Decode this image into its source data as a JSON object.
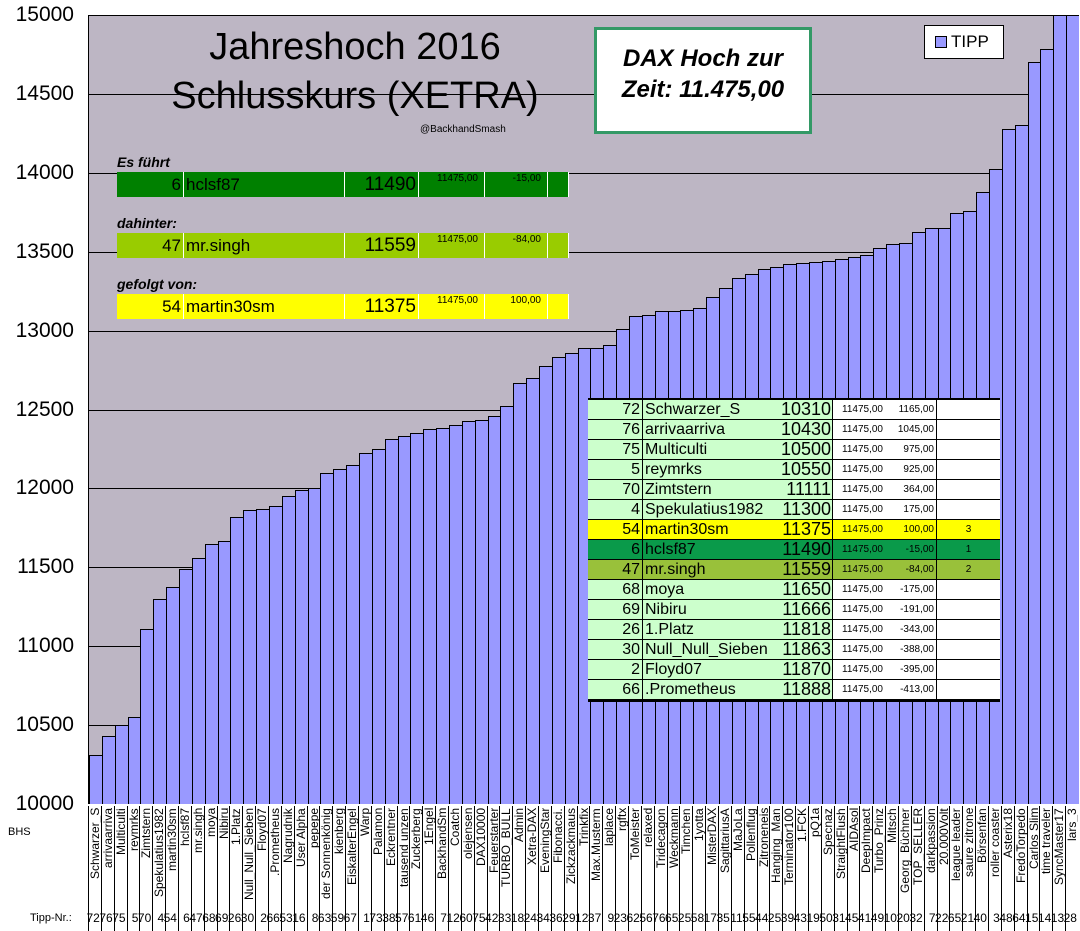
{
  "title": {
    "line1": "Jahreshoch 2016",
    "line2": "Schlusskurs (XETRA)",
    "handle": "@BackhandSmash"
  },
  "dax_box": {
    "line1": "DAX Hoch zur",
    "line2": "Zeit: 11.475,00"
  },
  "legend": {
    "label": "TIPP"
  },
  "side_labels": {
    "bhs": "BHS",
    "tipp_nr": "Tipp-Nr.:"
  },
  "colors": {
    "bar": "#9999ff",
    "plot_bg": "#bdb6c4",
    "lead": "#008000",
    "second": "#99cc00",
    "third": "#ffff00",
    "table_row": "#ccffcc",
    "dax_border": "#339966"
  },
  "podium": [
    {
      "label": "Es führt",
      "nr": "6",
      "name": "hclsf87",
      "tipp": "11490",
      "dax": "11475,00",
      "diff": "-15,00",
      "color": "#008000"
    },
    {
      "label": "dahinter:",
      "nr": "47",
      "name": "mr.singh",
      "tipp": "11559",
      "dax": "11475,00",
      "diff": "-84,00",
      "color": "#99cc00"
    },
    {
      "label": "gefolgt von:",
      "nr": "54",
      "name": "martin30sm",
      "tipp": "11375",
      "dax": "11475,00",
      "diff": "100,00",
      "color": "#ffff00"
    }
  ],
  "table": [
    {
      "nr": "72",
      "name": "Schwarzer_S",
      "tipp": "10310",
      "dax": "11475,00",
      "diff": "1165,00",
      "rank": "",
      "color": "#ccffcc"
    },
    {
      "nr": "76",
      "name": "arrivaarriva",
      "tipp": "10430",
      "dax": "11475,00",
      "diff": "1045,00",
      "rank": "",
      "color": "#ccffcc"
    },
    {
      "nr": "75",
      "name": "Multiculti",
      "tipp": "10500",
      "dax": "11475,00",
      "diff": "975,00",
      "rank": "",
      "color": "#ccffcc"
    },
    {
      "nr": "5",
      "name": "reymrks",
      "tipp": "10550",
      "dax": "11475,00",
      "diff": "925,00",
      "rank": "",
      "color": "#ccffcc"
    },
    {
      "nr": "70",
      "name": "Zimtstern",
      "tipp": "11111",
      "dax": "11475,00",
      "diff": "364,00",
      "rank": "",
      "color": "#ccffcc"
    },
    {
      "nr": "4",
      "name": "Spekulatius1982",
      "tipp": "11300",
      "dax": "11475,00",
      "diff": "175,00",
      "rank": "",
      "color": "#ccffcc"
    },
    {
      "nr": "54",
      "name": "martin30sm",
      "tipp": "11375",
      "dax": "11475,00",
      "diff": "100,00",
      "rank": "3",
      "color": "#ffff00"
    },
    {
      "nr": "6",
      "name": "hclsf87",
      "tipp": "11490",
      "dax": "11475,00",
      "diff": "-15,00",
      "rank": "1",
      "color": "#0a9a4a"
    },
    {
      "nr": "47",
      "name": "mr.singh",
      "tipp": "11559",
      "dax": "11475,00",
      "diff": "-84,00",
      "rank": "2",
      "color": "#99c13a"
    },
    {
      "nr": "68",
      "name": "moya",
      "tipp": "11650",
      "dax": "11475,00",
      "diff": "-175,00",
      "rank": "",
      "color": "#ccffcc"
    },
    {
      "nr": "69",
      "name": "Nibiru",
      "tipp": "11666",
      "dax": "11475,00",
      "diff": "-191,00",
      "rank": "",
      "color": "#ccffcc"
    },
    {
      "nr": "26",
      "name": "1.Platz",
      "tipp": "11818",
      "dax": "11475,00",
      "diff": "-343,00",
      "rank": "",
      "color": "#ccffcc"
    },
    {
      "nr": "30",
      "name": "Null_Null_Sieben",
      "tipp": "11863",
      "dax": "11475,00",
      "diff": "-388,00",
      "rank": "",
      "color": "#ccffcc"
    },
    {
      "nr": "2",
      "name": "Floyd07",
      "tipp": "11870",
      "dax": "11475,00",
      "diff": "-395,00",
      "rank": "",
      "color": "#ccffcc"
    },
    {
      "nr": "66",
      "name": ".Prometheus",
      "tipp": "11888",
      "dax": "11475,00",
      "diff": "-413,00",
      "rank": "",
      "color": "#ccffcc"
    }
  ],
  "chart_data": {
    "type": "bar",
    "title": "Jahreshoch 2016 Schlusskurs (XETRA)",
    "ylim": [
      10000,
      15000
    ],
    "yticks": [
      "10000",
      "10500",
      "11000",
      "11500",
      "12000",
      "12500",
      "13000",
      "13500",
      "14000",
      "14500",
      "15000"
    ],
    "grid": true,
    "legend_position": "top-right",
    "series": [
      {
        "name": "TIPP",
        "values": [
          10310,
          10430,
          10500,
          10550,
          11111,
          11300,
          11375,
          11490,
          11559,
          11650,
          11666,
          11818,
          11863,
          11870,
          11888,
          11950,
          11990,
          12000,
          12100,
          12120,
          12150,
          12222,
          12250,
          12310,
          12330,
          12350,
          12375,
          12385,
          12400,
          12430,
          12435,
          12460,
          12520,
          12666,
          12700,
          12777,
          12835,
          12855,
          12888,
          12888,
          12911,
          13007,
          13090,
          13100,
          13125,
          13125,
          13130,
          13144,
          13213,
          13270,
          13333,
          13358,
          13390,
          13400,
          13420,
          13428,
          13435,
          13440,
          13455,
          13466,
          13480,
          13523,
          13550,
          13555,
          13625,
          13650,
          13650,
          13745,
          13757,
          13878,
          14025,
          14280,
          14300,
          14700,
          14785,
          15000,
          15000
        ]
      }
    ],
    "categories": [
      "Schwarzer_S",
      "arrivaarriva",
      "Multiculti",
      "reymrks",
      "Zimtstern",
      "Spekulatius1982",
      "martin30sm",
      "hclsf87",
      "mr.singh",
      "moya",
      "Nibiru",
      "1.Platz",
      "Null_Null_Sieben",
      "Floyd07",
      ".Prometheus",
      "Nagrudnik",
      "User Alpha",
      "pepepe",
      "der Sonnenkönig",
      "kienberg",
      "EiskalterEngel",
      "Warp",
      "Palamon",
      "Eckrentner",
      "tausend unzen",
      "Zuckerberg",
      "1Engel",
      "BackhandSm",
      "Coatch",
      "olejensen",
      "DAX10000",
      "Feuerstarter",
      "TURBO_BULL",
      "Admin",
      "Xetra-DAX",
      "EveningStar",
      "Fibonacci.",
      "Zickzackmaus",
      "Trinkfix",
      "Max.Musterm",
      "laplace",
      "rgftx",
      "ToMeister",
      "relaxed",
      "Tridecagon",
      "Weckmann",
      "Timchen",
      "1yotta",
      "MisterDAX",
      "SagittariusA",
      "MaJoLa",
      "Pollenflug",
      "Zitroneneis",
      "Hanging_Man",
      "Terminator100",
      "1.FCK",
      "pQ1a",
      "Specnaz",
      "StraightFlush",
      "AIDAsol",
      "DeepImpact",
      "Turbo_Prinz",
      "Mitsch",
      "Georg_Büchner",
      "TOP_SELLER",
      "darkpassion",
      "20.000Volt",
      "league leader",
      "saure zitrone",
      "Börsenfan",
      "roller coaster",
      "Asterix18",
      "FredoTorpedo",
      "Carlos Slim",
      "time traveler",
      "SyncMaster17",
      "lars_3"
    ],
    "tipp_nr": [
      "72",
      "76",
      "75",
      "5",
      "70",
      "4",
      "54",
      "6",
      "47",
      "68",
      "69",
      "26",
      "30",
      "2",
      "66",
      "53",
      "16",
      "8",
      "63",
      "59",
      "67",
      "1",
      "73",
      "38",
      "57",
      "61",
      "46",
      "7",
      "12",
      "60",
      "75",
      "42",
      "33",
      "18",
      "24",
      "34",
      "36",
      "29",
      "12",
      "37",
      "9",
      "23",
      "62",
      "56",
      "76",
      "65",
      "25",
      "58",
      "17",
      "35",
      "11",
      "55",
      "44",
      "25",
      "39",
      "43",
      "19",
      "50",
      "31",
      "45",
      "41",
      "49",
      "10",
      "20",
      "32",
      "7",
      "22",
      "65",
      "21",
      "40",
      "3",
      "48",
      "64",
      "15",
      "14",
      "13",
      "28"
    ]
  }
}
